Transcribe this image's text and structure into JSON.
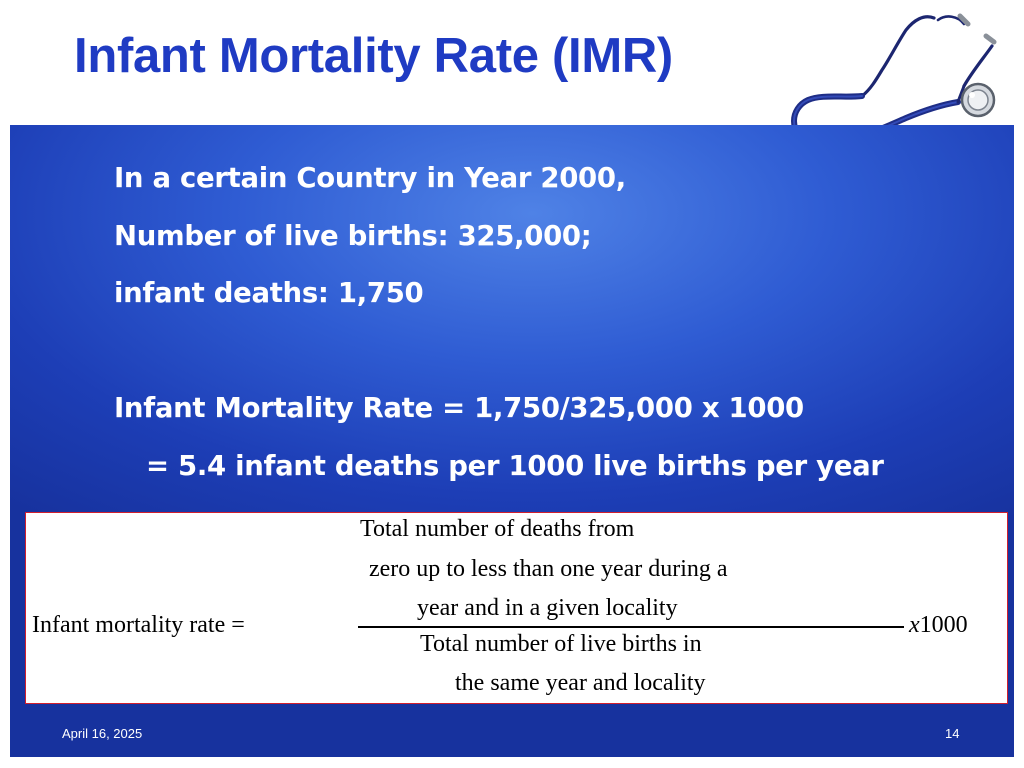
{
  "slide": {
    "title": "Infant Mortality Rate (IMR)",
    "lines": [
      "In a certain Country in Year 2000,",
      "Number of live births: 325,000;",
      "infant deaths: 1,750",
      "",
      "Infant Mortality Rate = 1,750/325,000 x 1000",
      "= 5.4 infant deaths per 1000 live births per year"
    ],
    "formula": {
      "lhs": "Infant mortality rate =",
      "numerator": [
        "Total number of  deaths from",
        "zero up to less than one year during a",
        "year and in a given locality"
      ],
      "denominator": [
        "Total number of  live births in",
        "the same year and locality"
      ],
      "multiplier_x": "x",
      "multiplier_value": "1000"
    },
    "footer": {
      "date": "April 16, 2025",
      "page_number": "14"
    }
  },
  "colors": {
    "title": "#1f3bc3",
    "panel_center": "#4f82e6",
    "panel_edge": "#17329e",
    "formula_border": "#d11f2e"
  },
  "icons": [
    "stethoscope-icon"
  ]
}
